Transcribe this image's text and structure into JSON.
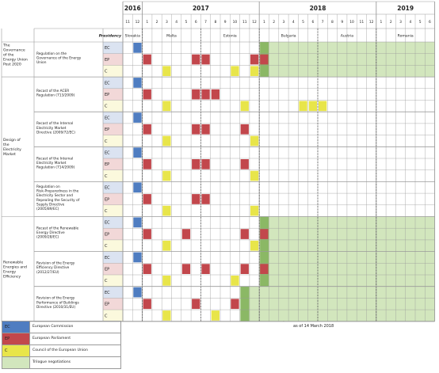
{
  "chart_data": {
    "type": "table",
    "years": [
      {
        "label": "2016",
        "start": 0,
        "span": 2
      },
      {
        "label": "2017",
        "start": 2,
        "span": 12
      },
      {
        "label": "2018",
        "start": 14,
        "span": 12
      },
      {
        "label": "2019",
        "start": 26,
        "span": 6
      }
    ],
    "month_labels": [
      "11",
      "12",
      "1",
      "2",
      "3",
      "4",
      "5",
      "6",
      "7",
      "8",
      "9",
      "10",
      "11",
      "12",
      "1",
      "2",
      "3",
      "4",
      "5",
      "6",
      "7",
      "8",
      "9",
      "10",
      "11",
      "12",
      "1",
      "2",
      "3",
      "4",
      "5",
      "6"
    ],
    "presidency_header": "Presidency",
    "presidencies": [
      {
        "label": "Slovakia",
        "start": 0,
        "span": 2
      },
      {
        "label": "Malta",
        "start": 2,
        "span": 6
      },
      {
        "label": "Estonia",
        "start": 8,
        "span": 6
      },
      {
        "label": "Bulgaria",
        "start": 14,
        "span": 6
      },
      {
        "label": "Austria",
        "start": 20,
        "span": 6
      },
      {
        "label": "Romania",
        "start": 26,
        "span": 6
      }
    ],
    "row_codes": [
      "EC",
      "EP",
      "C"
    ],
    "groups": [
      {
        "label": "The Governance of the Energy Union Post 2020",
        "files": [
          0
        ]
      },
      {
        "label": "Design of the Electricity Market",
        "files": [
          1,
          2,
          3,
          4
        ]
      },
      {
        "label": "Renewable Energies and Energy Efficiency",
        "files": [
          5,
          6,
          7
        ]
      }
    ],
    "files": [
      {
        "label": "Regulation on the Governance of the Energy Union",
        "ec": [
          1
        ],
        "ep": [
          2,
          7,
          8,
          13,
          14
        ],
        "c": [
          4,
          11,
          13
        ],
        "trilogue": [
          14,
          15
        ]
      },
      {
        "label": "Recast of the ACER Regulation (713/2009)",
        "ec": [
          1
        ],
        "ep": [
          2,
          7,
          8,
          9
        ],
        "c": [
          4,
          12,
          18,
          19,
          20
        ],
        "trilogue": []
      },
      {
        "label": "Recast of the Internal Electricity Market Directive (2009/72/EC)",
        "ec": [
          1
        ],
        "ep": [
          2,
          7,
          8,
          12
        ],
        "c": [
          4,
          13
        ],
        "trilogue": []
      },
      {
        "label": "Recast of the Internal Electricity Market Regulation (714/2009)",
        "ec": [
          1
        ],
        "ep": [
          2,
          7,
          8,
          12
        ],
        "c": [
          4,
          13
        ],
        "trilogue": []
      },
      {
        "label": "Regulation on Risk-Preparedness in the Electricity Sector and Repealing the Security of Supply Directive (2005/89/EC)",
        "ec": [
          1
        ],
        "ep": [
          2,
          7,
          8
        ],
        "c": [
          4,
          13
        ],
        "trilogue": []
      },
      {
        "label": "Recast of the Renewable Energy Directive (2009/28/EC)",
        "ec": [
          1
        ],
        "ep": [
          2,
          6,
          12,
          14
        ],
        "c": [
          4,
          13
        ],
        "trilogue": [
          14,
          15
        ]
      },
      {
        "label": "Revision of the Energy Efficiency Directive (2012/27/EU)",
        "ec": [
          1
        ],
        "ep": [
          2,
          6,
          8,
          12,
          14
        ],
        "c": [
          4,
          11
        ],
        "trilogue": [
          14,
          15
        ]
      },
      {
        "label": "Revision of the Energy Performance of Buildings Directive (2010/31/EU)",
        "ec": [
          1
        ],
        "ep": [
          2,
          7,
          11
        ],
        "c": [
          4,
          9
        ],
        "trilogue": [
          12
        ]
      }
    ],
    "legend": [
      {
        "code": "EC",
        "label": "European Commission"
      },
      {
        "code": "EP",
        "label": "European Parliament"
      },
      {
        "code": "C",
        "label": "Council of the European Union"
      },
      {
        "code": "",
        "label": "Trilogue negotiations"
      }
    ],
    "annotation": "as of 14 March 2018",
    "colors": {
      "ec": "#4f7dc1",
      "ep": "#c2474c",
      "c": "#e8e54a",
      "trilogue": "#d2e6bd",
      "trilogue_marker": "#8bb865",
      "ec_label_bg": "#dbe3f1",
      "ep_label_bg": "#f2d8d8",
      "c_label_bg": "#fbf9dd",
      "grid": "#9a9a9a"
    }
  }
}
